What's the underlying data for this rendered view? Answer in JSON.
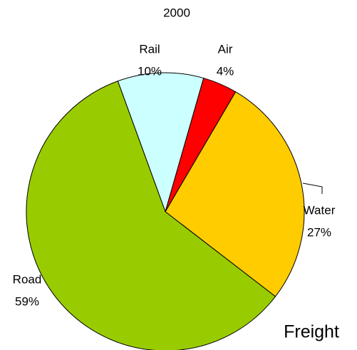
{
  "chart_data": {
    "type": "pie",
    "title": "2000",
    "annotation": "Freight",
    "categories": [
      "Rail",
      "Air",
      "Water",
      "Road"
    ],
    "values": [
      10,
      4,
      27,
      59
    ],
    "value_labels": [
      "10%",
      "4%",
      "27%",
      "59%"
    ],
    "colors": [
      "#ccffff",
      "#ff0000",
      "#ffcc00",
      "#99cc00"
    ]
  }
}
